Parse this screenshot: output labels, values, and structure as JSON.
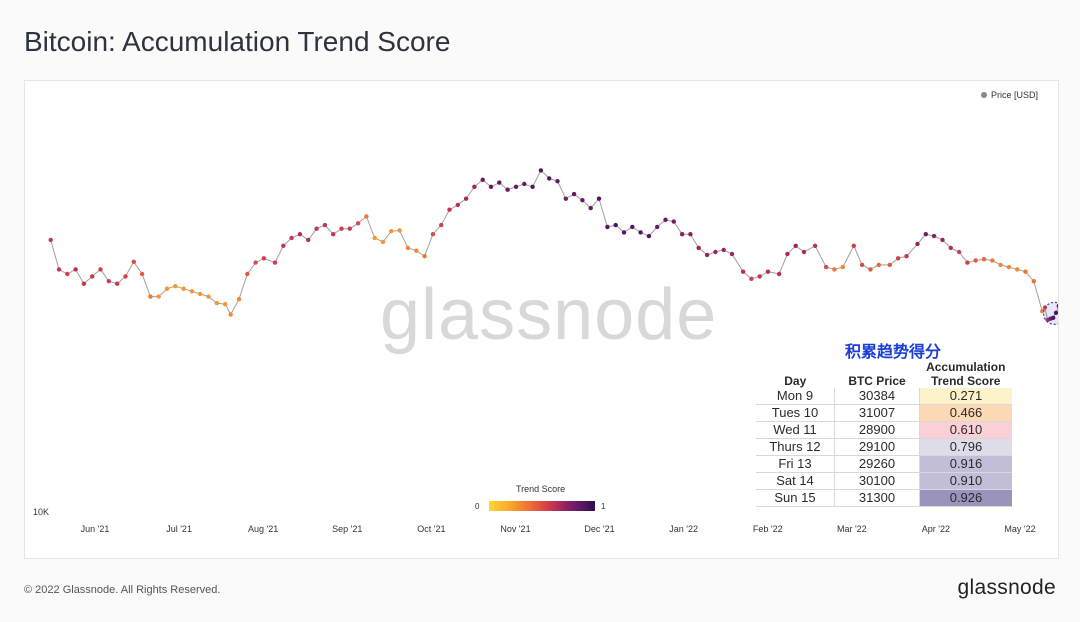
{
  "page": {
    "title": "Bitcoin: Accumulation Trend Score"
  },
  "legend": {
    "label": "Price [USD]",
    "color": "#888888"
  },
  "watermark": "glassnode",
  "footer": {
    "copyright": "© 2022 Glassnode. All Rights Reserved.",
    "brand": "glassnode"
  },
  "table": {
    "title": "积累趋势得分",
    "headers": [
      "Day",
      "BTC Price",
      "Accumulation\nTrend Score"
    ],
    "rows": [
      {
        "day": "Mon 9",
        "price": "30384",
        "score": "0.271",
        "color": "#fdf3c8"
      },
      {
        "day": "Tues 10",
        "price": "31007",
        "score": "0.466",
        "color": "#fcd8b4"
      },
      {
        "day": "Wed 11",
        "price": "28900",
        "score": "0.610",
        "color": "#f9d0d6"
      },
      {
        "day": "Thurs 12",
        "price": "29100",
        "score": "0.796",
        "color": "#dfdce9"
      },
      {
        "day": "Fri 13",
        "price": "29260",
        "score": "0.916",
        "color": "#c3bed8"
      },
      {
        "day": "Sat 14",
        "price": "30100",
        "score": "0.910",
        "color": "#c3bed8"
      },
      {
        "day": "Sun 15",
        "price": "31300",
        "score": "0.926",
        "color": "#9c93bd"
      }
    ]
  },
  "chart_data": {
    "type": "scatter",
    "title": "Bitcoin: Accumulation Trend Score",
    "ylabel": "",
    "y_tick_labels": [
      "10K"
    ],
    "x_tick_labels": [
      "Jun '21",
      "Jul '21",
      "Aug '21",
      "Sep '21",
      "Oct '21",
      "Nov '21",
      "Dec '21",
      "Jan '22",
      "Feb '22",
      "Mar '22",
      "Apr '22",
      "May '22"
    ],
    "colorbar": {
      "title": "Trend Score",
      "min": "0",
      "max": "1",
      "colors": [
        "#fdd835",
        "#f8a12a",
        "#ee6a36",
        "#d23d4c",
        "#a3275b",
        "#6a1b69",
        "#2e0c4e"
      ]
    },
    "yscale": "log",
    "ylim": [
      10000,
      70000
    ],
    "series": [
      {
        "name": "Price [USD]",
        "points": [
          [
            "2021-05-16",
            45500,
            0.55
          ],
          [
            "2021-05-19",
            38500,
            0.55
          ],
          [
            "2021-05-22",
            37500,
            0.5
          ],
          [
            "2021-05-25",
            38500,
            0.6
          ],
          [
            "2021-05-28",
            35500,
            0.55
          ],
          [
            "2021-05-31",
            37000,
            0.55
          ],
          [
            "2021-06-03",
            38500,
            0.5
          ],
          [
            "2021-06-06",
            36000,
            0.5
          ],
          [
            "2021-06-09",
            35500,
            0.55
          ],
          [
            "2021-06-12",
            37000,
            0.5
          ],
          [
            "2021-06-15",
            40200,
            0.45
          ],
          [
            "2021-06-18",
            37500,
            0.4
          ],
          [
            "2021-06-21",
            33000,
            0.3
          ],
          [
            "2021-06-24",
            33000,
            0.2
          ],
          [
            "2021-06-27",
            34500,
            0.2
          ],
          [
            "2021-06-30",
            35000,
            0.2
          ],
          [
            "2021-07-03",
            34500,
            0.2
          ],
          [
            "2021-07-06",
            34000,
            0.2
          ],
          [
            "2021-07-09",
            33500,
            0.2
          ],
          [
            "2021-07-12",
            33000,
            0.2
          ],
          [
            "2021-07-15",
            31800,
            0.2
          ],
          [
            "2021-07-18",
            31600,
            0.2
          ],
          [
            "2021-07-20",
            29800,
            0.25
          ],
          [
            "2021-07-23",
            32500,
            0.25
          ],
          [
            "2021-07-26",
            37500,
            0.4
          ],
          [
            "2021-07-29",
            40000,
            0.45
          ],
          [
            "2021-08-01",
            41000,
            0.5
          ],
          [
            "2021-08-05",
            40000,
            0.5
          ],
          [
            "2021-08-08",
            44000,
            0.55
          ],
          [
            "2021-08-11",
            46000,
            0.55
          ],
          [
            "2021-08-14",
            47000,
            0.6
          ],
          [
            "2021-08-17",
            45500,
            0.6
          ],
          [
            "2021-08-20",
            48500,
            0.55
          ],
          [
            "2021-08-23",
            49500,
            0.55
          ],
          [
            "2021-08-26",
            47000,
            0.55
          ],
          [
            "2021-08-29",
            48500,
            0.5
          ],
          [
            "2021-09-01",
            48500,
            0.5
          ],
          [
            "2021-09-04",
            50000,
            0.45
          ],
          [
            "2021-09-07",
            52000,
            0.3
          ],
          [
            "2021-09-10",
            46000,
            0.2
          ],
          [
            "2021-09-13",
            45000,
            0.2
          ],
          [
            "2021-09-16",
            47800,
            0.2
          ],
          [
            "2021-09-19",
            48000,
            0.2
          ],
          [
            "2021-09-22",
            43500,
            0.25
          ],
          [
            "2021-09-25",
            42800,
            0.25
          ],
          [
            "2021-09-28",
            41500,
            0.3
          ],
          [
            "2021-10-01",
            47000,
            0.45
          ],
          [
            "2021-10-04",
            49500,
            0.5
          ],
          [
            "2021-10-07",
            54000,
            0.55
          ],
          [
            "2021-10-10",
            55500,
            0.6
          ],
          [
            "2021-10-13",
            57500,
            0.65
          ],
          [
            "2021-10-16",
            61500,
            0.7
          ],
          [
            "2021-10-19",
            64000,
            0.85
          ],
          [
            "2021-10-22",
            61500,
            0.85
          ],
          [
            "2021-10-25",
            63000,
            0.85
          ],
          [
            "2021-10-28",
            60500,
            0.85
          ],
          [
            "2021-10-31",
            61500,
            0.85
          ],
          [
            "2021-11-03",
            62500,
            0.85
          ],
          [
            "2021-11-06",
            61500,
            0.9
          ],
          [
            "2021-11-09",
            67500,
            0.9
          ],
          [
            "2021-11-12",
            64500,
            0.9
          ],
          [
            "2021-11-15",
            63500,
            0.85
          ],
          [
            "2021-11-18",
            57500,
            0.8
          ],
          [
            "2021-11-21",
            59000,
            0.85
          ],
          [
            "2021-11-24",
            57000,
            0.85
          ],
          [
            "2021-11-27",
            54500,
            0.85
          ],
          [
            "2021-11-30",
            57500,
            0.9
          ],
          [
            "2021-12-03",
            49000,
            0.9
          ],
          [
            "2021-12-06",
            49500,
            0.9
          ],
          [
            "2021-12-09",
            47500,
            0.9
          ],
          [
            "2021-12-12",
            49000,
            0.9
          ],
          [
            "2021-12-15",
            47500,
            0.9
          ],
          [
            "2021-12-18",
            46500,
            0.9
          ],
          [
            "2021-12-21",
            49000,
            0.85
          ],
          [
            "2021-12-24",
            51000,
            0.85
          ],
          [
            "2021-12-27",
            50500,
            0.8
          ],
          [
            "2021-12-30",
            47000,
            0.75
          ],
          [
            "2022-01-02",
            47000,
            0.75
          ],
          [
            "2022-01-05",
            43500,
            0.7
          ],
          [
            "2022-01-08",
            41800,
            0.7
          ],
          [
            "2022-01-11",
            42500,
            0.7
          ],
          [
            "2022-01-14",
            43000,
            0.7
          ],
          [
            "2022-01-17",
            42000,
            0.7
          ],
          [
            "2022-01-21",
            38000,
            0.6
          ],
          [
            "2022-01-24",
            36500,
            0.5
          ],
          [
            "2022-01-27",
            37000,
            0.55
          ],
          [
            "2022-01-30",
            38000,
            0.6
          ],
          [
            "2022-02-03",
            37500,
            0.6
          ],
          [
            "2022-02-06",
            42000,
            0.65
          ],
          [
            "2022-02-09",
            44000,
            0.7
          ],
          [
            "2022-02-12",
            42500,
            0.65
          ],
          [
            "2022-02-16",
            44000,
            0.6
          ],
          [
            "2022-02-20",
            39000,
            0.45
          ],
          [
            "2022-02-23",
            38500,
            0.3
          ],
          [
            "2022-02-26",
            39000,
            0.25
          ],
          [
            "2022-03-02",
            44000,
            0.5
          ],
          [
            "2022-03-05",
            39500,
            0.45
          ],
          [
            "2022-03-08",
            38500,
            0.4
          ],
          [
            "2022-03-11",
            39500,
            0.35
          ],
          [
            "2022-03-15",
            39500,
            0.4
          ],
          [
            "2022-03-18",
            41000,
            0.5
          ],
          [
            "2022-03-21",
            41500,
            0.55
          ],
          [
            "2022-03-25",
            44500,
            0.7
          ],
          [
            "2022-03-28",
            47000,
            0.8
          ],
          [
            "2022-03-31",
            46500,
            0.75
          ],
          [
            "2022-04-03",
            45500,
            0.7
          ],
          [
            "2022-04-06",
            43500,
            0.6
          ],
          [
            "2022-04-09",
            42500,
            0.5
          ],
          [
            "2022-04-12",
            40000,
            0.5
          ],
          [
            "2022-04-15",
            40500,
            0.4
          ],
          [
            "2022-04-18",
            40800,
            0.35
          ],
          [
            "2022-04-21",
            40500,
            0.3
          ],
          [
            "2022-04-24",
            39500,
            0.25
          ],
          [
            "2022-04-27",
            39000,
            0.25
          ],
          [
            "2022-04-30",
            38500,
            0.25
          ],
          [
            "2022-05-03",
            38000,
            0.3
          ],
          [
            "2022-05-06",
            36000,
            0.3
          ],
          [
            "2022-05-09",
            30384,
            0.271
          ],
          [
            "2022-05-10",
            31007,
            0.466
          ],
          [
            "2022-05-11",
            28900,
            0.61
          ],
          [
            "2022-05-12",
            29100,
            0.796
          ],
          [
            "2022-05-13",
            29260,
            0.916
          ],
          [
            "2022-05-14",
            30100,
            0.91
          ],
          [
            "2022-05-15",
            31300,
            0.926
          ]
        ]
      }
    ]
  }
}
